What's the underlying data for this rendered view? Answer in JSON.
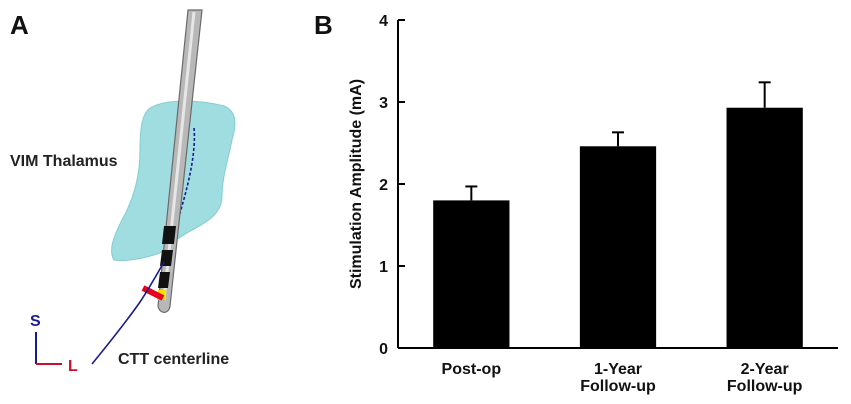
{
  "panel_a": {
    "label": "A",
    "thalamus_label": "VIM Thalamus",
    "centerline_label": "CTT centerline",
    "axis_superior": "S",
    "axis_lateral": "L",
    "colors": {
      "thalamus_fill": "#8fd8dc",
      "lead_shaft": "#b8b8b8",
      "centerline": "#1a1a8c",
      "axis_s": "#1a1a8c",
      "axis_l": "#c8102e",
      "contact_red": "#e8001c",
      "contact_yellow": "#f2e200"
    }
  },
  "chart_data": {
    "panel_label": "B",
    "type": "bar",
    "categories": [
      "Post-op",
      "1-Year Follow-up",
      "2-Year Follow-up"
    ],
    "category_lines": [
      [
        "Post-op"
      ],
      [
        "1-Year",
        "Follow-up"
      ],
      [
        "2-Year",
        "Follow-up"
      ]
    ],
    "values": [
      1.8,
      2.46,
      2.93
    ],
    "errors": [
      0.17,
      0.17,
      0.31
    ],
    "ylabel": "Stimulation Amplitude (mA)",
    "xlabel": "",
    "ylim": [
      0,
      4
    ],
    "yticks": [
      0,
      1,
      2,
      3,
      4
    ],
    "grid": false,
    "legend": "none",
    "bar_color": "#000000"
  }
}
